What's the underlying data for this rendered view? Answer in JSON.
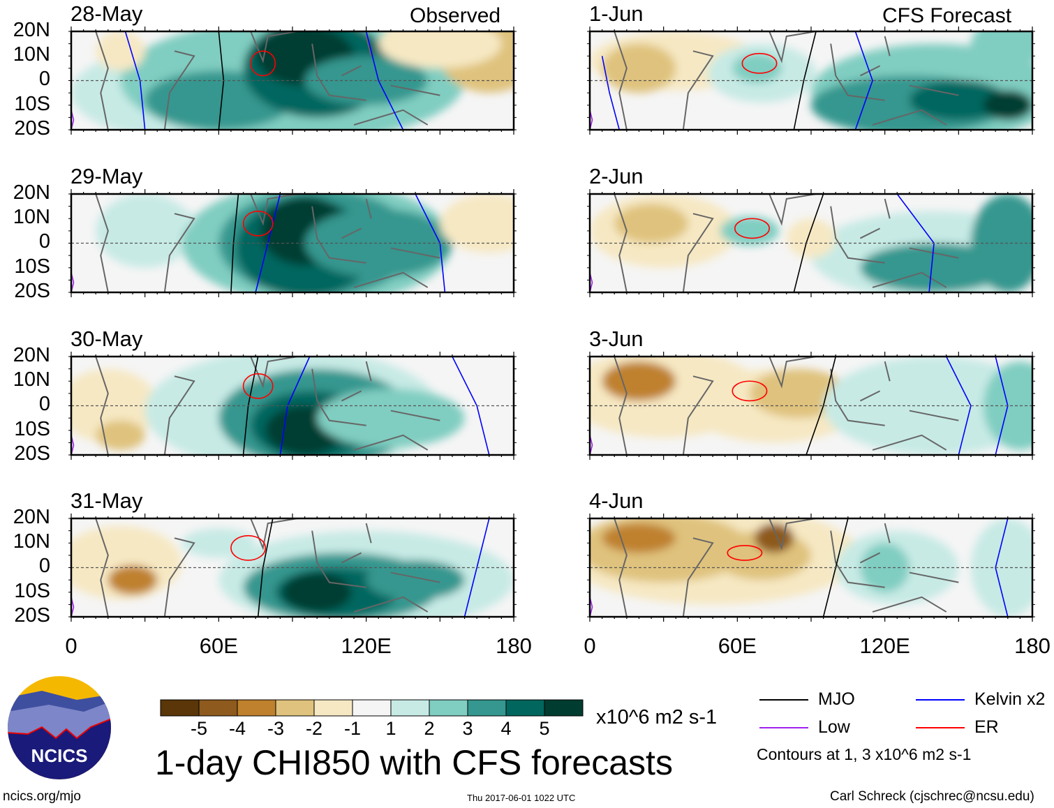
{
  "chart_data": {
    "type": "heatmap",
    "title": "1-day CHI850 with CFS forecasts",
    "left_column_label": "Observed",
    "right_column_label": "CFS Forecast",
    "panels_left": [
      "28-May",
      "29-May",
      "30-May",
      "31-May"
    ],
    "panels_right": [
      "1-Jun",
      "2-Jun",
      "3-Jun",
      "4-Jun"
    ],
    "lat_ticks": [
      "20N",
      "10N",
      "0",
      "10S",
      "20S"
    ],
    "lon_ticks": [
      "0",
      "60E",
      "120E",
      "180"
    ],
    "lon_range": [
      0,
      180
    ],
    "lat_range": [
      -20,
      20
    ],
    "colorbar": {
      "levels": [
        "-5",
        "-4",
        "-3",
        "-2",
        "-1",
        "1",
        "2",
        "3",
        "4",
        "5"
      ],
      "colors": [
        "#5a3608",
        "#8e5a1e",
        "#bf812d",
        "#dfc27d",
        "#f6e8c3",
        "#f5f5f5",
        "#c7eae5",
        "#80cdc1",
        "#35978f",
        "#01665e",
        "#003c30"
      ],
      "units": "x10^6 m2 s-1"
    },
    "legend": [
      {
        "label": "MJO",
        "color": "#000000"
      },
      {
        "label": "Kelvin x2",
        "color": "#0000ff"
      },
      {
        "label": "Low",
        "color": "#a020f0"
      },
      {
        "label": "ER",
        "color": "#ff0000"
      }
    ],
    "contour_note": "Contours at 1, 3 x10^6 m2 s-1"
  },
  "footer": {
    "logo_text": "NCICS",
    "url": "ncics.org/mjo",
    "timestamp": "Thu 2017-06-01 1022 UTC",
    "credit": "Carl Schreck (cjschrec@ncsu.edu)"
  }
}
